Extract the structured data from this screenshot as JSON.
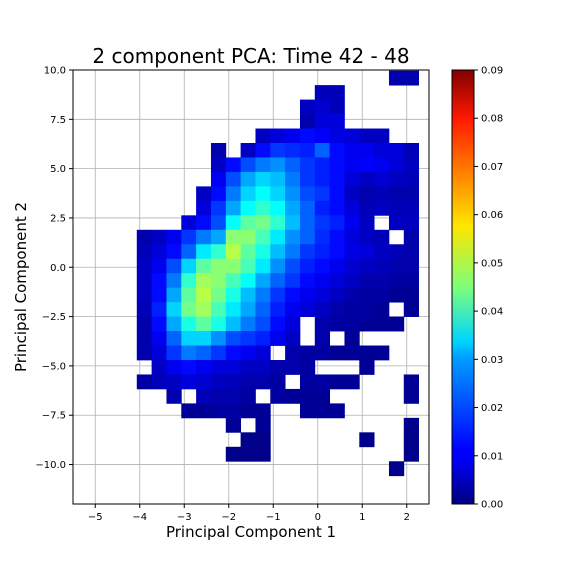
{
  "chart_data": {
    "type": "heatmap",
    "title": "2 component PCA: Time 42 - 48",
    "xlabel": "Principal Component 1",
    "ylabel": "Principal Component 2",
    "xlim": [
      -5.5,
      2.5
    ],
    "ylim": [
      -12.0,
      10.0
    ],
    "x_ticks": [
      -5,
      -4,
      -3,
      -2,
      -1,
      0,
      1,
      2
    ],
    "x_tick_labels": [
      "−5",
      "−4",
      "−3",
      "−2",
      "−1",
      "0",
      "1",
      "2"
    ],
    "y_ticks": [
      10.0,
      7.5,
      5.0,
      2.5,
      0.0,
      -2.5,
      -5.0,
      -7.5,
      -10.0
    ],
    "y_tick_labels": [
      "10.0",
      "7.5",
      "5.0",
      "2.5",
      "0.0",
      "−2.5",
      "−5.0",
      "−7.5",
      "−10.0"
    ],
    "grid": true,
    "colormap": "jet",
    "colorbar": {
      "range": [
        0.0,
        0.09
      ],
      "ticks": [
        0.0,
        0.01,
        0.02,
        0.03,
        0.04,
        0.05,
        0.06,
        0.07,
        0.08,
        0.09
      ],
      "tick_labels": [
        "0.00",
        "0.01",
        "0.02",
        "0.03",
        "0.04",
        "0.05",
        "0.06",
        "0.07",
        "0.08",
        "0.09"
      ]
    },
    "bin_width_x": 0.333,
    "bin_height_y": 0.733,
    "column_x_centers": [
      -3.9,
      -3.567,
      -3.233,
      -2.9,
      -2.567,
      -2.233,
      -1.9,
      -1.567,
      -1.233,
      -0.9,
      -0.567,
      -0.233,
      0.1,
      0.433,
      0.767,
      1.1,
      1.433,
      1.767,
      2.1
    ],
    "row_y_centers": [
      9.6,
      8.867,
      8.133,
      7.4,
      6.667,
      5.933,
      5.2,
      4.467,
      3.733,
      3.0,
      2.267,
      1.533,
      0.8,
      0.067,
      -0.667,
      -1.4,
      -2.133,
      -2.867,
      -3.6,
      -4.333,
      -5.067,
      -5.8,
      -6.533,
      -7.267,
      -8.0,
      -8.733,
      -9.467,
      -10.2
    ],
    "density": [
      [
        null,
        null,
        null,
        null,
        null,
        null,
        null,
        null,
        null,
        null,
        null,
        null,
        null,
        null,
        null,
        null,
        null,
        0.004,
        0.004
      ],
      [
        null,
        null,
        null,
        null,
        null,
        null,
        null,
        null,
        null,
        null,
        null,
        null,
        0.005,
        0.005,
        null,
        null,
        null,
        null,
        null
      ],
      [
        null,
        null,
        null,
        null,
        null,
        null,
        null,
        null,
        null,
        null,
        null,
        0.006,
        0.007,
        0.005,
        null,
        null,
        null,
        null,
        null
      ],
      [
        null,
        null,
        null,
        null,
        null,
        null,
        null,
        null,
        null,
        null,
        null,
        0.004,
        0.008,
        0.008,
        null,
        null,
        null,
        null,
        null
      ],
      [
        null,
        null,
        null,
        null,
        null,
        null,
        null,
        null,
        0.006,
        0.008,
        0.01,
        0.012,
        0.011,
        0.009,
        0.008,
        0.006,
        0.006,
        null,
        null
      ],
      [
        null,
        null,
        null,
        null,
        null,
        0.004,
        null,
        0.006,
        0.012,
        0.016,
        0.015,
        0.014,
        0.02,
        0.012,
        0.01,
        0.01,
        0.008,
        0.008,
        0.005
      ],
      [
        null,
        null,
        null,
        null,
        null,
        0.006,
        0.012,
        0.018,
        0.022,
        0.024,
        0.02,
        0.016,
        0.014,
        0.012,
        0.01,
        0.011,
        0.01,
        0.008,
        0.006
      ],
      [
        null,
        null,
        null,
        null,
        null,
        0.01,
        0.018,
        0.026,
        0.03,
        0.028,
        0.022,
        0.016,
        0.014,
        0.012,
        0.008,
        0.006,
        0.007,
        0.006,
        0.005
      ],
      [
        null,
        null,
        null,
        null,
        0.006,
        0.012,
        0.022,
        0.03,
        0.034,
        0.03,
        0.024,
        0.018,
        0.016,
        0.012,
        0.006,
        0.004,
        0.005,
        0.004,
        0.004
      ],
      [
        null,
        null,
        null,
        null,
        0.008,
        0.016,
        0.026,
        0.034,
        0.038,
        0.034,
        0.026,
        0.02,
        0.014,
        0.012,
        0.008,
        0.005,
        0.006,
        0.005,
        0.005
      ],
      [
        null,
        null,
        null,
        0.008,
        0.012,
        0.018,
        0.034,
        0.042,
        0.044,
        0.038,
        0.028,
        0.02,
        0.016,
        0.014,
        0.01,
        0.006,
        null,
        0.006,
        0.006
      ],
      [
        0.004,
        0.006,
        0.01,
        0.016,
        0.022,
        0.026,
        0.046,
        0.046,
        0.04,
        0.032,
        0.024,
        0.02,
        0.015,
        0.012,
        0.008,
        0.006,
        0.005,
        null,
        0.004
      ],
      [
        0.005,
        0.008,
        0.012,
        0.02,
        0.032,
        0.038,
        0.05,
        0.042,
        0.036,
        0.028,
        0.022,
        0.016,
        0.014,
        0.012,
        0.009,
        0.008,
        0.006,
        0.005,
        0.004
      ],
      [
        0.006,
        0.01,
        0.018,
        0.03,
        0.042,
        0.046,
        0.046,
        0.04,
        0.032,
        0.024,
        0.018,
        0.014,
        0.012,
        0.01,
        0.007,
        0.006,
        0.005,
        0.004,
        0.004
      ],
      [
        0.006,
        0.012,
        0.022,
        0.038,
        0.048,
        0.046,
        0.04,
        0.034,
        0.026,
        0.02,
        0.016,
        0.012,
        0.01,
        0.008,
        0.006,
        0.004,
        0.004,
        0.003,
        0.003
      ],
      [
        0.006,
        0.012,
        0.026,
        0.042,
        0.05,
        0.044,
        0.036,
        0.028,
        0.022,
        0.016,
        0.012,
        0.01,
        0.008,
        0.006,
        0.004,
        0.003,
        0.003,
        0.002,
        0.002
      ],
      [
        0.005,
        0.014,
        0.03,
        0.044,
        0.048,
        0.04,
        0.032,
        0.026,
        0.02,
        0.014,
        0.01,
        0.008,
        0.006,
        0.004,
        0.003,
        0.003,
        0.002,
        null,
        0.002
      ],
      [
        0.004,
        0.012,
        0.026,
        0.036,
        0.042,
        0.036,
        0.028,
        0.022,
        0.018,
        0.012,
        0.008,
        null,
        0.004,
        0.003,
        0.003,
        0.002,
        0.002,
        0.002,
        null
      ],
      [
        0.004,
        0.01,
        0.02,
        0.03,
        0.03,
        0.024,
        0.018,
        0.016,
        0.014,
        0.01,
        0.006,
        null,
        0.004,
        null,
        0.002,
        null,
        null,
        null,
        null
      ],
      [
        0.004,
        0.008,
        0.016,
        0.022,
        0.02,
        0.016,
        0.012,
        0.01,
        0.008,
        null,
        0.004,
        0.003,
        0.003,
        0.002,
        0.002,
        0.002,
        0.002,
        null,
        null
      ],
      [
        null,
        0.006,
        0.01,
        0.012,
        0.01,
        0.008,
        0.008,
        0.006,
        0.006,
        0.004,
        0.004,
        0.003,
        null,
        null,
        null,
        0.002,
        null,
        null,
        null
      ],
      [
        0.003,
        0.005,
        0.006,
        0.008,
        0.007,
        0.006,
        0.005,
        0.004,
        0.004,
        0.003,
        null,
        0.003,
        0.003,
        0.002,
        0.002,
        null,
        null,
        null,
        0.002
      ],
      [
        null,
        null,
        0.004,
        null,
        0.005,
        0.004,
        0.004,
        0.003,
        null,
        0.003,
        0.002,
        0.002,
        0.002,
        null,
        null,
        null,
        null,
        null,
        0.002
      ],
      [
        null,
        null,
        null,
        0.002,
        0.002,
        0.003,
        0.003,
        0.002,
        0.002,
        null,
        null,
        0.002,
        0.002,
        0.002,
        null,
        null,
        null,
        null,
        null
      ],
      [
        null,
        null,
        null,
        null,
        null,
        null,
        0.002,
        null,
        0.002,
        null,
        null,
        null,
        null,
        null,
        null,
        null,
        null,
        null,
        0.001
      ],
      [
        null,
        null,
        null,
        null,
        null,
        null,
        null,
        0.001,
        0.001,
        null,
        null,
        null,
        null,
        null,
        null,
        0.001,
        null,
        null,
        0.001
      ],
      [
        null,
        null,
        null,
        null,
        null,
        null,
        0.001,
        0.001,
        0.001,
        null,
        null,
        null,
        null,
        null,
        null,
        null,
        null,
        null,
        0.001
      ],
      [
        null,
        null,
        null,
        null,
        null,
        null,
        null,
        null,
        null,
        null,
        null,
        null,
        null,
        null,
        null,
        null,
        null,
        0.001,
        null
      ]
    ]
  }
}
